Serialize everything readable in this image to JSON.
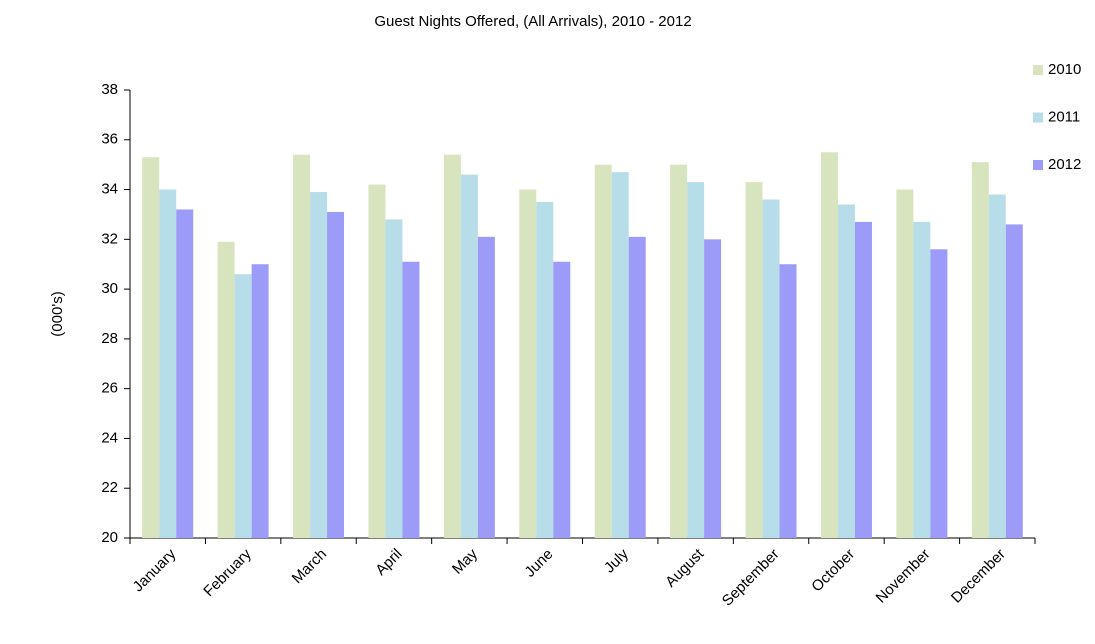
{
  "chart_data": {
    "type": "bar",
    "title": "Guest Nights Offered, (All Arrivals), 2010 - 2012",
    "y_label": "(000's)",
    "categories": [
      "January",
      "February",
      "March",
      "April",
      "May",
      "June",
      "July",
      "August",
      "September",
      "October",
      "November",
      "December"
    ],
    "series": [
      {
        "name": "2010",
        "color": "#d7e4bd",
        "values": [
          35.3,
          31.9,
          35.4,
          34.2,
          35.4,
          34.0,
          35.0,
          35.0,
          34.3,
          35.5,
          34.0,
          35.1
        ]
      },
      {
        "name": "2011",
        "color": "#b7dee8",
        "values": [
          34.0,
          30.6,
          33.9,
          32.8,
          34.6,
          33.5,
          34.7,
          34.3,
          33.6,
          33.4,
          32.7,
          33.8
        ]
      },
      {
        "name": "2012",
        "color": "#9c9cf8",
        "values": [
          33.2,
          31.0,
          33.1,
          31.1,
          32.1,
          31.1,
          32.1,
          32.0,
          31.0,
          32.7,
          31.6,
          32.6
        ]
      }
    ],
    "ylim": [
      20,
      38
    ],
    "yticks": [
      20,
      22,
      24,
      26,
      28,
      30,
      32,
      34,
      36,
      38
    ],
    "grid": false,
    "legend": "right"
  }
}
